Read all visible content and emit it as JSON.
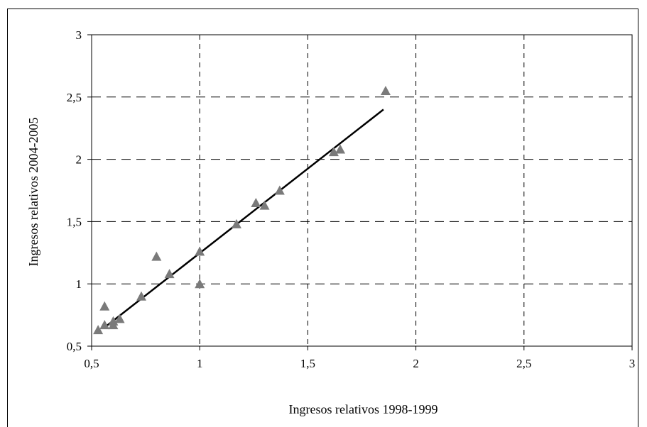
{
  "chart_data": {
    "type": "scatter",
    "title": "",
    "xlabel": "Ingresos relativos 1998-1999",
    "ylabel": "Ingresos relativos 2004-2005",
    "xlim": [
      0.5,
      3
    ],
    "ylim": [
      0.5,
      3
    ],
    "x_ticks": [
      "0,5",
      "1",
      "1,5",
      "2",
      "2,5",
      "3"
    ],
    "y_ticks": [
      "0,5",
      "1",
      "1,5",
      "2",
      "2,5",
      "3"
    ],
    "grid": true,
    "legend": "none",
    "marker": "triangle",
    "marker_color": "#7a7a7a",
    "line_color": "#000000",
    "points": [
      {
        "x": 0.53,
        "y": 0.63
      },
      {
        "x": 0.56,
        "y": 0.67
      },
      {
        "x": 0.56,
        "y": 0.82
      },
      {
        "x": 0.6,
        "y": 0.67
      },
      {
        "x": 0.6,
        "y": 0.7
      },
      {
        "x": 0.63,
        "y": 0.72
      },
      {
        "x": 0.73,
        "y": 0.9
      },
      {
        "x": 0.8,
        "y": 1.22
      },
      {
        "x": 0.86,
        "y": 1.08
      },
      {
        "x": 1.0,
        "y": 1.0
      },
      {
        "x": 1.0,
        "y": 1.26
      },
      {
        "x": 1.17,
        "y": 1.48
      },
      {
        "x": 1.26,
        "y": 1.65
      },
      {
        "x": 1.3,
        "y": 1.63
      },
      {
        "x": 1.37,
        "y": 1.75
      },
      {
        "x": 1.62,
        "y": 2.06
      },
      {
        "x": 1.65,
        "y": 2.08
      },
      {
        "x": 1.86,
        "y": 2.55
      }
    ],
    "trendline": {
      "x": [
        0.56,
        1.85
      ],
      "y": [
        0.65,
        2.4
      ]
    }
  }
}
